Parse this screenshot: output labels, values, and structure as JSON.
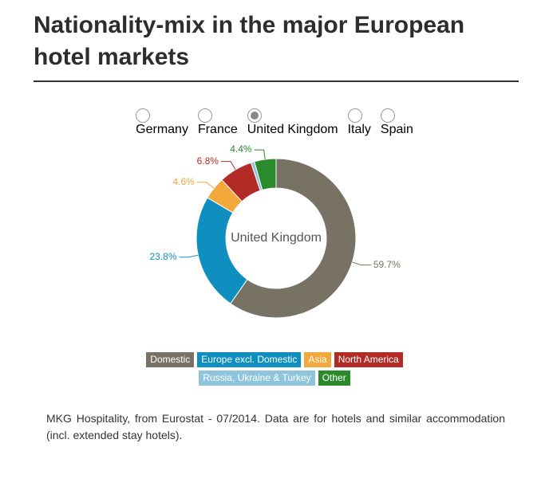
{
  "header": {
    "title": "Nationality-mix in the major European hotel markets"
  },
  "options": [
    "Germany",
    "France",
    "United Kingdom",
    "Italy",
    "Spain"
  ],
  "selected": 2,
  "chart_data": {
    "type": "donut",
    "center_label": "United Kingdom",
    "categories": [
      "Domestic",
      "Europe excl. Domestic",
      "Asia",
      "North America",
      "Russia, Ukraine & Turkey",
      "Other"
    ],
    "values": [
      59.7,
      23.8,
      4.6,
      6.8,
      0.7,
      4.4
    ],
    "value_labels": [
      "59.7%",
      "23.8%",
      "4.6%",
      "6.8%",
      null,
      "4.4%"
    ],
    "colors": [
      "#777264",
      "#0f8fc0",
      "#f2a83a",
      "#b22b26",
      "#8ec4dc",
      "#2b8a2b"
    ]
  },
  "footnote": "MKG Hospitality, from Eurostat - 07/2014. Data are for hotels and similar accommodation (incl. extended stay hotels)."
}
